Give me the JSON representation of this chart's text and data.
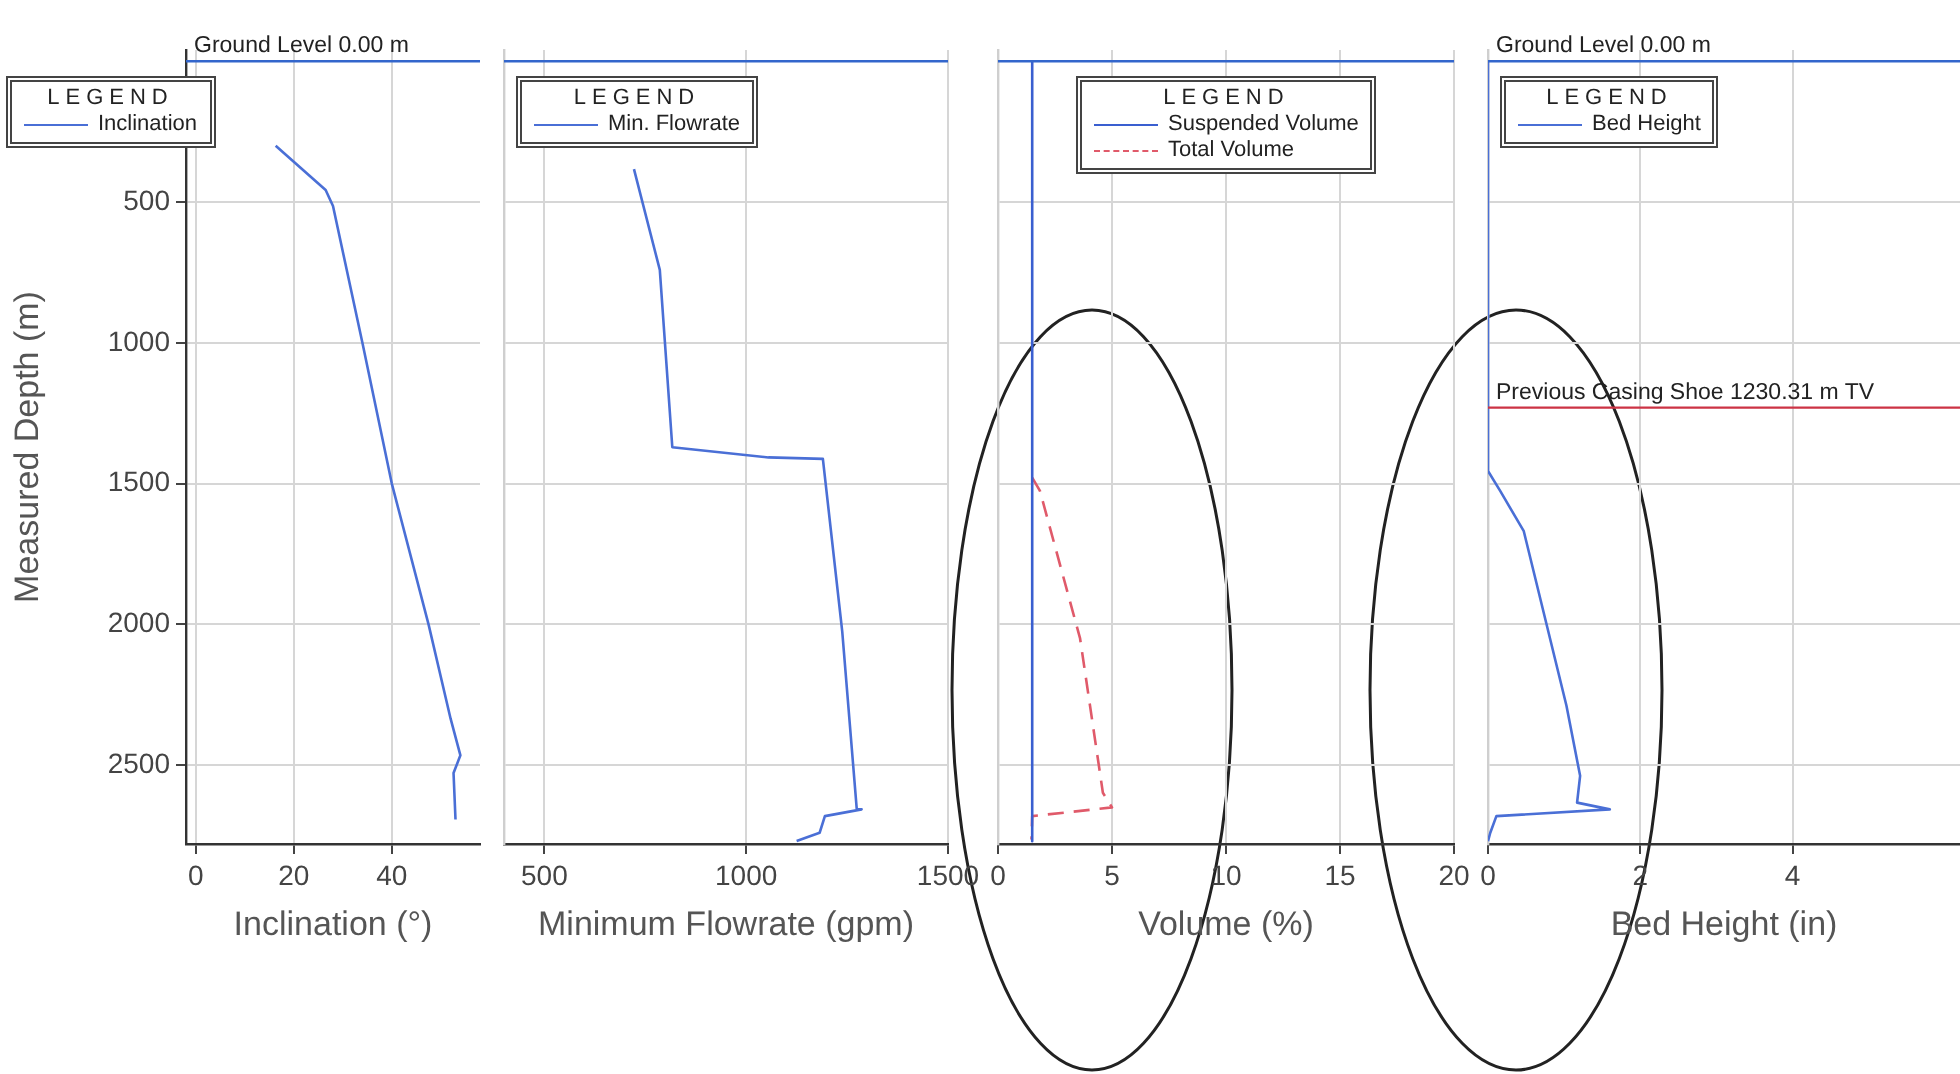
{
  "chart_data": [
    {
      "type": "line",
      "xlabel": "Inclination (°)",
      "ylabel": "Measured Depth (m)",
      "xlim": [
        -2,
        58
      ],
      "xticks": [
        0,
        20,
        40
      ],
      "ylim": [
        2780,
        -40
      ],
      "yticks": [
        500,
        1000,
        1500,
        2000,
        2500
      ],
      "grid": true,
      "legend": "top left",
      "legend_title": "LEGEND",
      "series": [
        {
          "name": "Inclination",
          "color": "#4a6fd6",
          "x": [
            16.3,
            26.5,
            28,
            34,
            40,
            47.5,
            52,
            54,
            52.6,
            53
          ],
          "values": [
            300,
            457,
            514,
            1000,
            1500,
            2000,
            2335,
            2465,
            2528,
            2693
          ]
        }
      ],
      "ref_lines": [
        {
          "axis": "y",
          "value": 0,
          "label": "Ground Level 0.00 m",
          "color": "#3366cc"
        }
      ]
    },
    {
      "type": "line",
      "xlabel": "Minimum Flowrate (gpm)",
      "xlim": [
        400,
        1500
      ],
      "xticks": [
        500,
        1000,
        1500
      ],
      "ylim": [
        2780,
        -40
      ],
      "yticks": [
        500,
        1000,
        1500,
        2000,
        2500
      ],
      "tick_labels": "x",
      "grid": true,
      "legend": "top left",
      "legend_title": "LEGEND",
      "series": [
        {
          "name": "Min. Flowrate",
          "color": "#4a6fd6",
          "x": [
            722,
            786,
            817,
            1055,
            1190,
            1238,
            1274,
            1286,
            1195,
            1182,
            1125
          ],
          "values": [
            383,
            741,
            1371,
            1407,
            1412,
            2026,
            2657,
            2657,
            2681,
            2740,
            2769
          ]
        }
      ],
      "ref_lines": [
        {
          "axis": "y",
          "value": 0,
          "color": "#3366cc"
        }
      ]
    },
    {
      "type": "line",
      "xlabel": "Volume (%)",
      "xlim": [
        0,
        20
      ],
      "xticks": [
        0,
        5,
        10,
        15,
        20
      ],
      "ylim": [
        2780,
        -40
      ],
      "yticks": [
        500,
        1000,
        1500,
        2000,
        2500
      ],
      "tick_labels": "x",
      "grid": true,
      "legend": "top",
      "legend_title": "LEGEND",
      "series": [
        {
          "name": "Suspended Volume",
          "color": "#3a5fd0",
          "x": [
            1.5,
            1.5
          ],
          "values": [
            0,
            2770
          ]
        },
        {
          "name": "Total Volume",
          "color": "#e05a6a",
          "line_style": "dashed",
          "x": [
            1.5,
            1.84,
            3.6,
            4.6,
            5.0,
            1.5,
            1.47
          ],
          "values": [
            1479,
            1526,
            2050,
            2598,
            2650,
            2681,
            2764
          ]
        }
      ],
      "ref_lines": [
        {
          "axis": "y",
          "value": 0,
          "color": "#3366cc"
        }
      ]
    },
    {
      "type": "line",
      "xlabel": "Bed Height (in)",
      "xlim": [
        0,
        6.2
      ],
      "xticks": [
        0,
        2,
        4
      ],
      "ylim": [
        2780,
        -40
      ],
      "yticks": [
        500,
        1000,
        1500,
        2000,
        2500
      ],
      "tick_labels": "x",
      "grid": true,
      "legend": "top left",
      "legend_title": "LEGEND",
      "series": [
        {
          "name": "Bed Height",
          "color": "#4a6fd6",
          "x": [
            0,
            0,
            0.16,
            0.47,
            1.03,
            1.21,
            1.17,
            1.6,
            0.11,
            0.03,
            0
          ],
          "values": [
            0,
            1455,
            1526,
            1669,
            2288,
            2538,
            2633,
            2657,
            2681,
            2740,
            2770
          ]
        }
      ],
      "ref_lines": [
        {
          "axis": "y",
          "value": 0,
          "label": "Ground Level 0.00 m",
          "color": "#3366cc"
        },
        {
          "axis": "y",
          "value": 1230.31,
          "label": "Previous Casing Shoe 1230.31 m TV",
          "color": "#cc3344"
        }
      ]
    }
  ]
}
